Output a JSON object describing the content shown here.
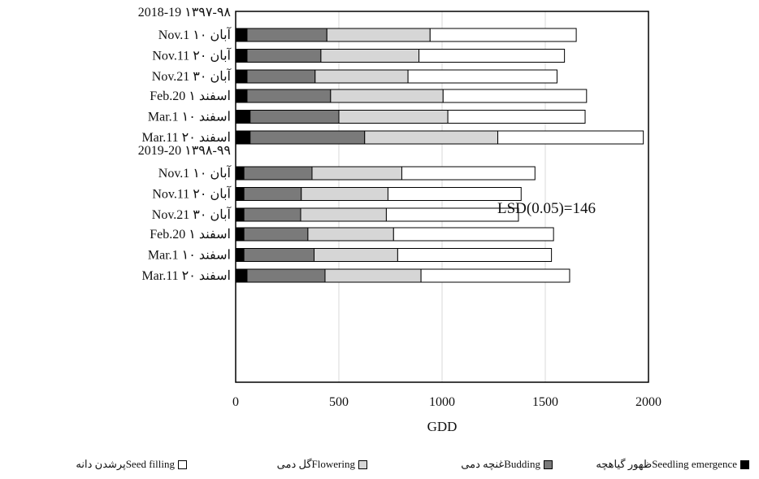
{
  "chart_data": {
    "type": "bar",
    "orientation": "horizontal",
    "stacked": true,
    "xlabel": "GDD",
    "xlim": [
      0,
      2000
    ],
    "xticks": [
      0,
      500,
      1000,
      1500,
      2000
    ],
    "grid": "vertical",
    "annotation": "LSD(0.05)=146",
    "groups": [
      {
        "label": "2018-19 ۱۳۹۷-۹۸",
        "rows": [
          "Nov.1 آبان ۱۰",
          "Nov.11 آبان ۲۰",
          "Nov.21 آبان ۳۰"
        ]
      },
      {
        "label": "",
        "rows": [
          "Feb.20 اسفند ۱",
          "Mar.1 اسفند ۱۰",
          "Mar.11 اسفند ۲۰"
        ]
      },
      {
        "label": "2019-20 ۱۳۹۸-۹۹",
        "rows": [
          "Nov.1 آبان ۱۰",
          "Nov.11 آبان ۲۰",
          "Nov.21 آبان ۳۰"
        ]
      },
      {
        "label": "",
        "rows": [
          "Feb.20 اسفند ۱",
          "Mar.1 اسفند ۱۰",
          "Mar.11 اسفند ۲۰"
        ]
      }
    ],
    "series": [
      {
        "name": "Seedling emergence",
        "name_fa": "ظهور گیاهچه",
        "color": "#000000",
        "values": [
          55,
          55,
          55,
          55,
          70,
          70,
          40,
          40,
          40,
          40,
          40,
          55
        ]
      },
      {
        "name": "Budding",
        "name_fa": "غنچه دمی",
        "color": "#7a7a7a",
        "values": [
          387,
          358,
          330,
          405,
          430,
          555,
          330,
          278,
          275,
          310,
          340,
          378
        ]
      },
      {
        "name": "Flowering",
        "name_fa": "گل دمی",
        "color": "#d6d6d6",
        "values": [
          500,
          475,
          450,
          545,
          528,
          645,
          435,
          420,
          415,
          415,
          405,
          465
        ]
      },
      {
        "name": "Seed filling",
        "name_fa": "پرشدن دانه",
        "color": "#ffffff",
        "values": [
          708,
          705,
          722,
          695,
          665,
          705,
          645,
          645,
          640,
          775,
          745,
          720
        ]
      }
    ]
  }
}
